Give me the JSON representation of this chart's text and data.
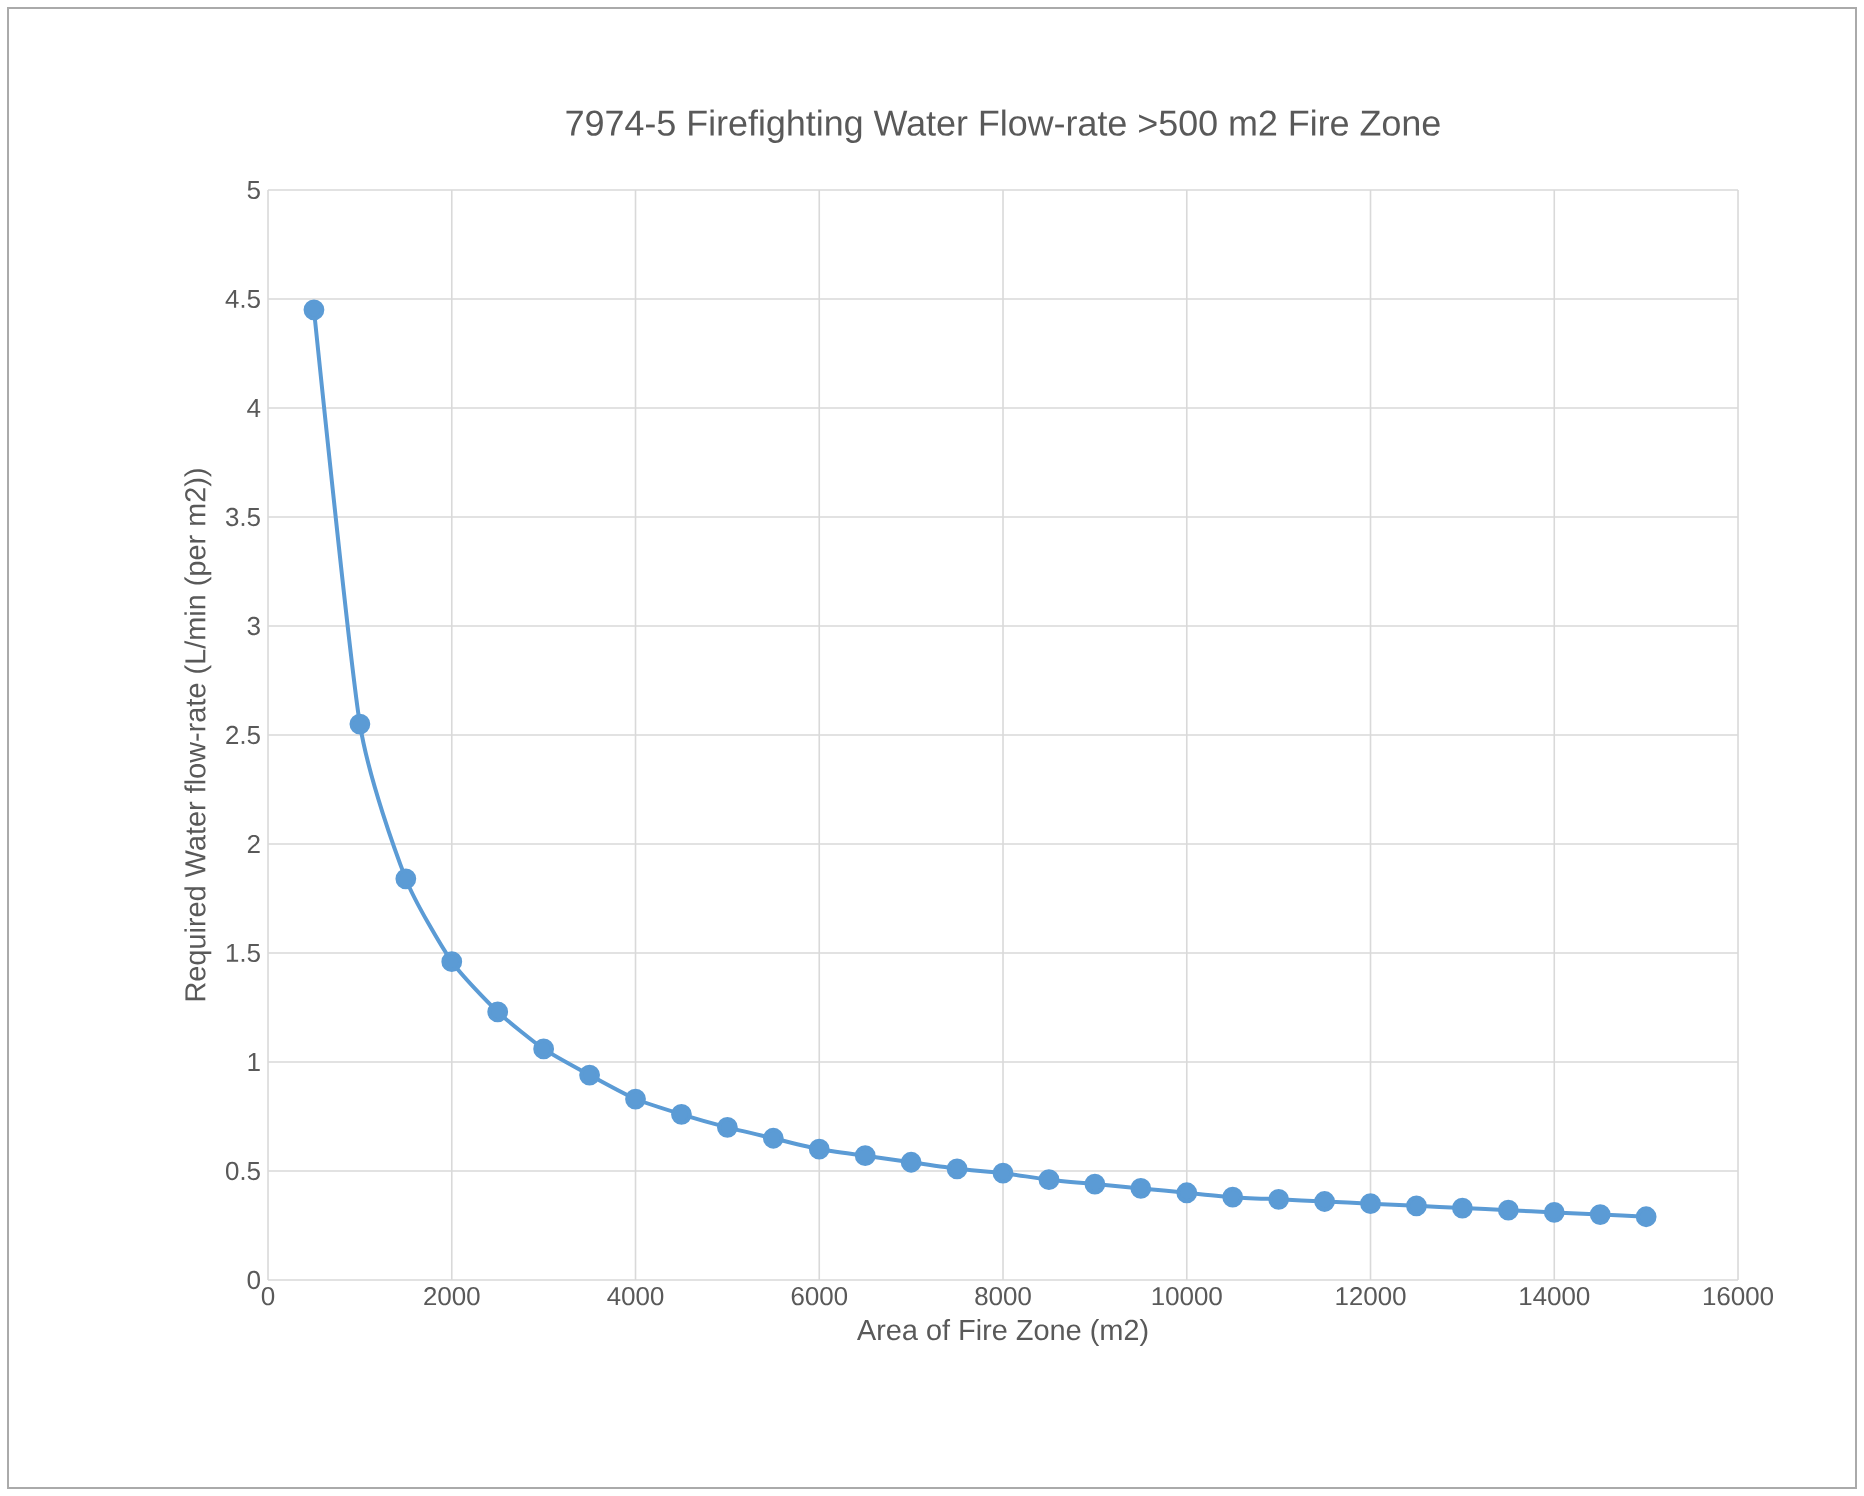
{
  "chart_data": {
    "type": "line",
    "title": "7974-5 Firefighting Water Flow-rate >500 m2 Fire Zone",
    "xlabel": "Area of Fire Zone (m2)",
    "ylabel": "Required Water flow-rate (L/min (per m2))",
    "x": [
      500,
      1000,
      1500,
      2000,
      2500,
      3000,
      3500,
      4000,
      4500,
      5000,
      5500,
      6000,
      6500,
      7000,
      7500,
      8000,
      8500,
      9000,
      9500,
      10000,
      10500,
      11000,
      11500,
      12000,
      12500,
      13000,
      13500,
      14000,
      14500,
      15000
    ],
    "series": [
      {
        "color": "#5b9bd5",
        "values": [
          4.45,
          2.55,
          1.84,
          1.46,
          1.23,
          1.06,
          0.94,
          0.83,
          0.76,
          0.7,
          0.65,
          0.6,
          0.57,
          0.54,
          0.51,
          0.49,
          0.46,
          0.44,
          0.42,
          0.4,
          0.38,
          0.37,
          0.36,
          0.35,
          0.34,
          0.33,
          0.32,
          0.31,
          0.3,
          0.29
        ]
      }
    ],
    "xlim": [
      0,
      16000
    ],
    "ylim": [
      0,
      5
    ],
    "xticks": [
      0,
      2000,
      4000,
      6000,
      8000,
      10000,
      12000,
      14000,
      16000
    ],
    "yticks": [
      0,
      0.5,
      1,
      1.5,
      2,
      2.5,
      3,
      3.5,
      4,
      4.5,
      5
    ],
    "grid": true,
    "marker": "circle",
    "line_style": "solid"
  }
}
